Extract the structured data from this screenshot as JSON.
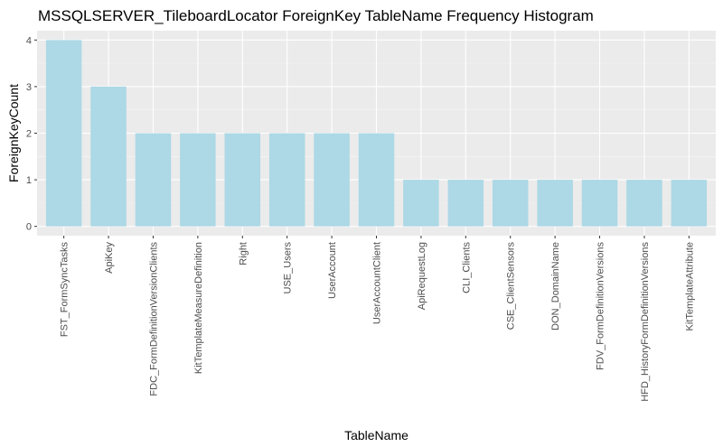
{
  "chart_data": {
    "type": "bar",
    "title": "MSSQLSERVER_TileboardLocator ForeignKey TableName Frequency Histogram",
    "xlabel": "TableName",
    "ylabel": "ForeignKeyCount",
    "categories": [
      "FST_FormSyncTasks",
      "ApiKey",
      "FDC_FormDefinitionVersionClients",
      "KitTemplateMeasureDefinition",
      "Right",
      "USE_Users",
      "UserAccount",
      "UserAccountClient",
      "ApiRequestLog",
      "CLI_Clients",
      "CSE_ClientSensors",
      "DON_DomainName",
      "FDV_FormDefinitionVersions",
      "HFD_HistoryFormDefinitionVersions",
      "KitTemplateAttribute"
    ],
    "values": [
      4,
      3,
      2,
      2,
      2,
      2,
      2,
      2,
      1,
      1,
      1,
      1,
      1,
      1,
      1
    ],
    "ylim": [
      -0.2,
      4.2
    ],
    "yticks": [
      0,
      1,
      2,
      3,
      4
    ],
    "grid": true,
    "legend": "none",
    "colors": {
      "bar": "#add8e6",
      "panel": "#ebebeb",
      "grid_major": "#ffffff",
      "grid_minor": "#f5f5f5"
    }
  }
}
